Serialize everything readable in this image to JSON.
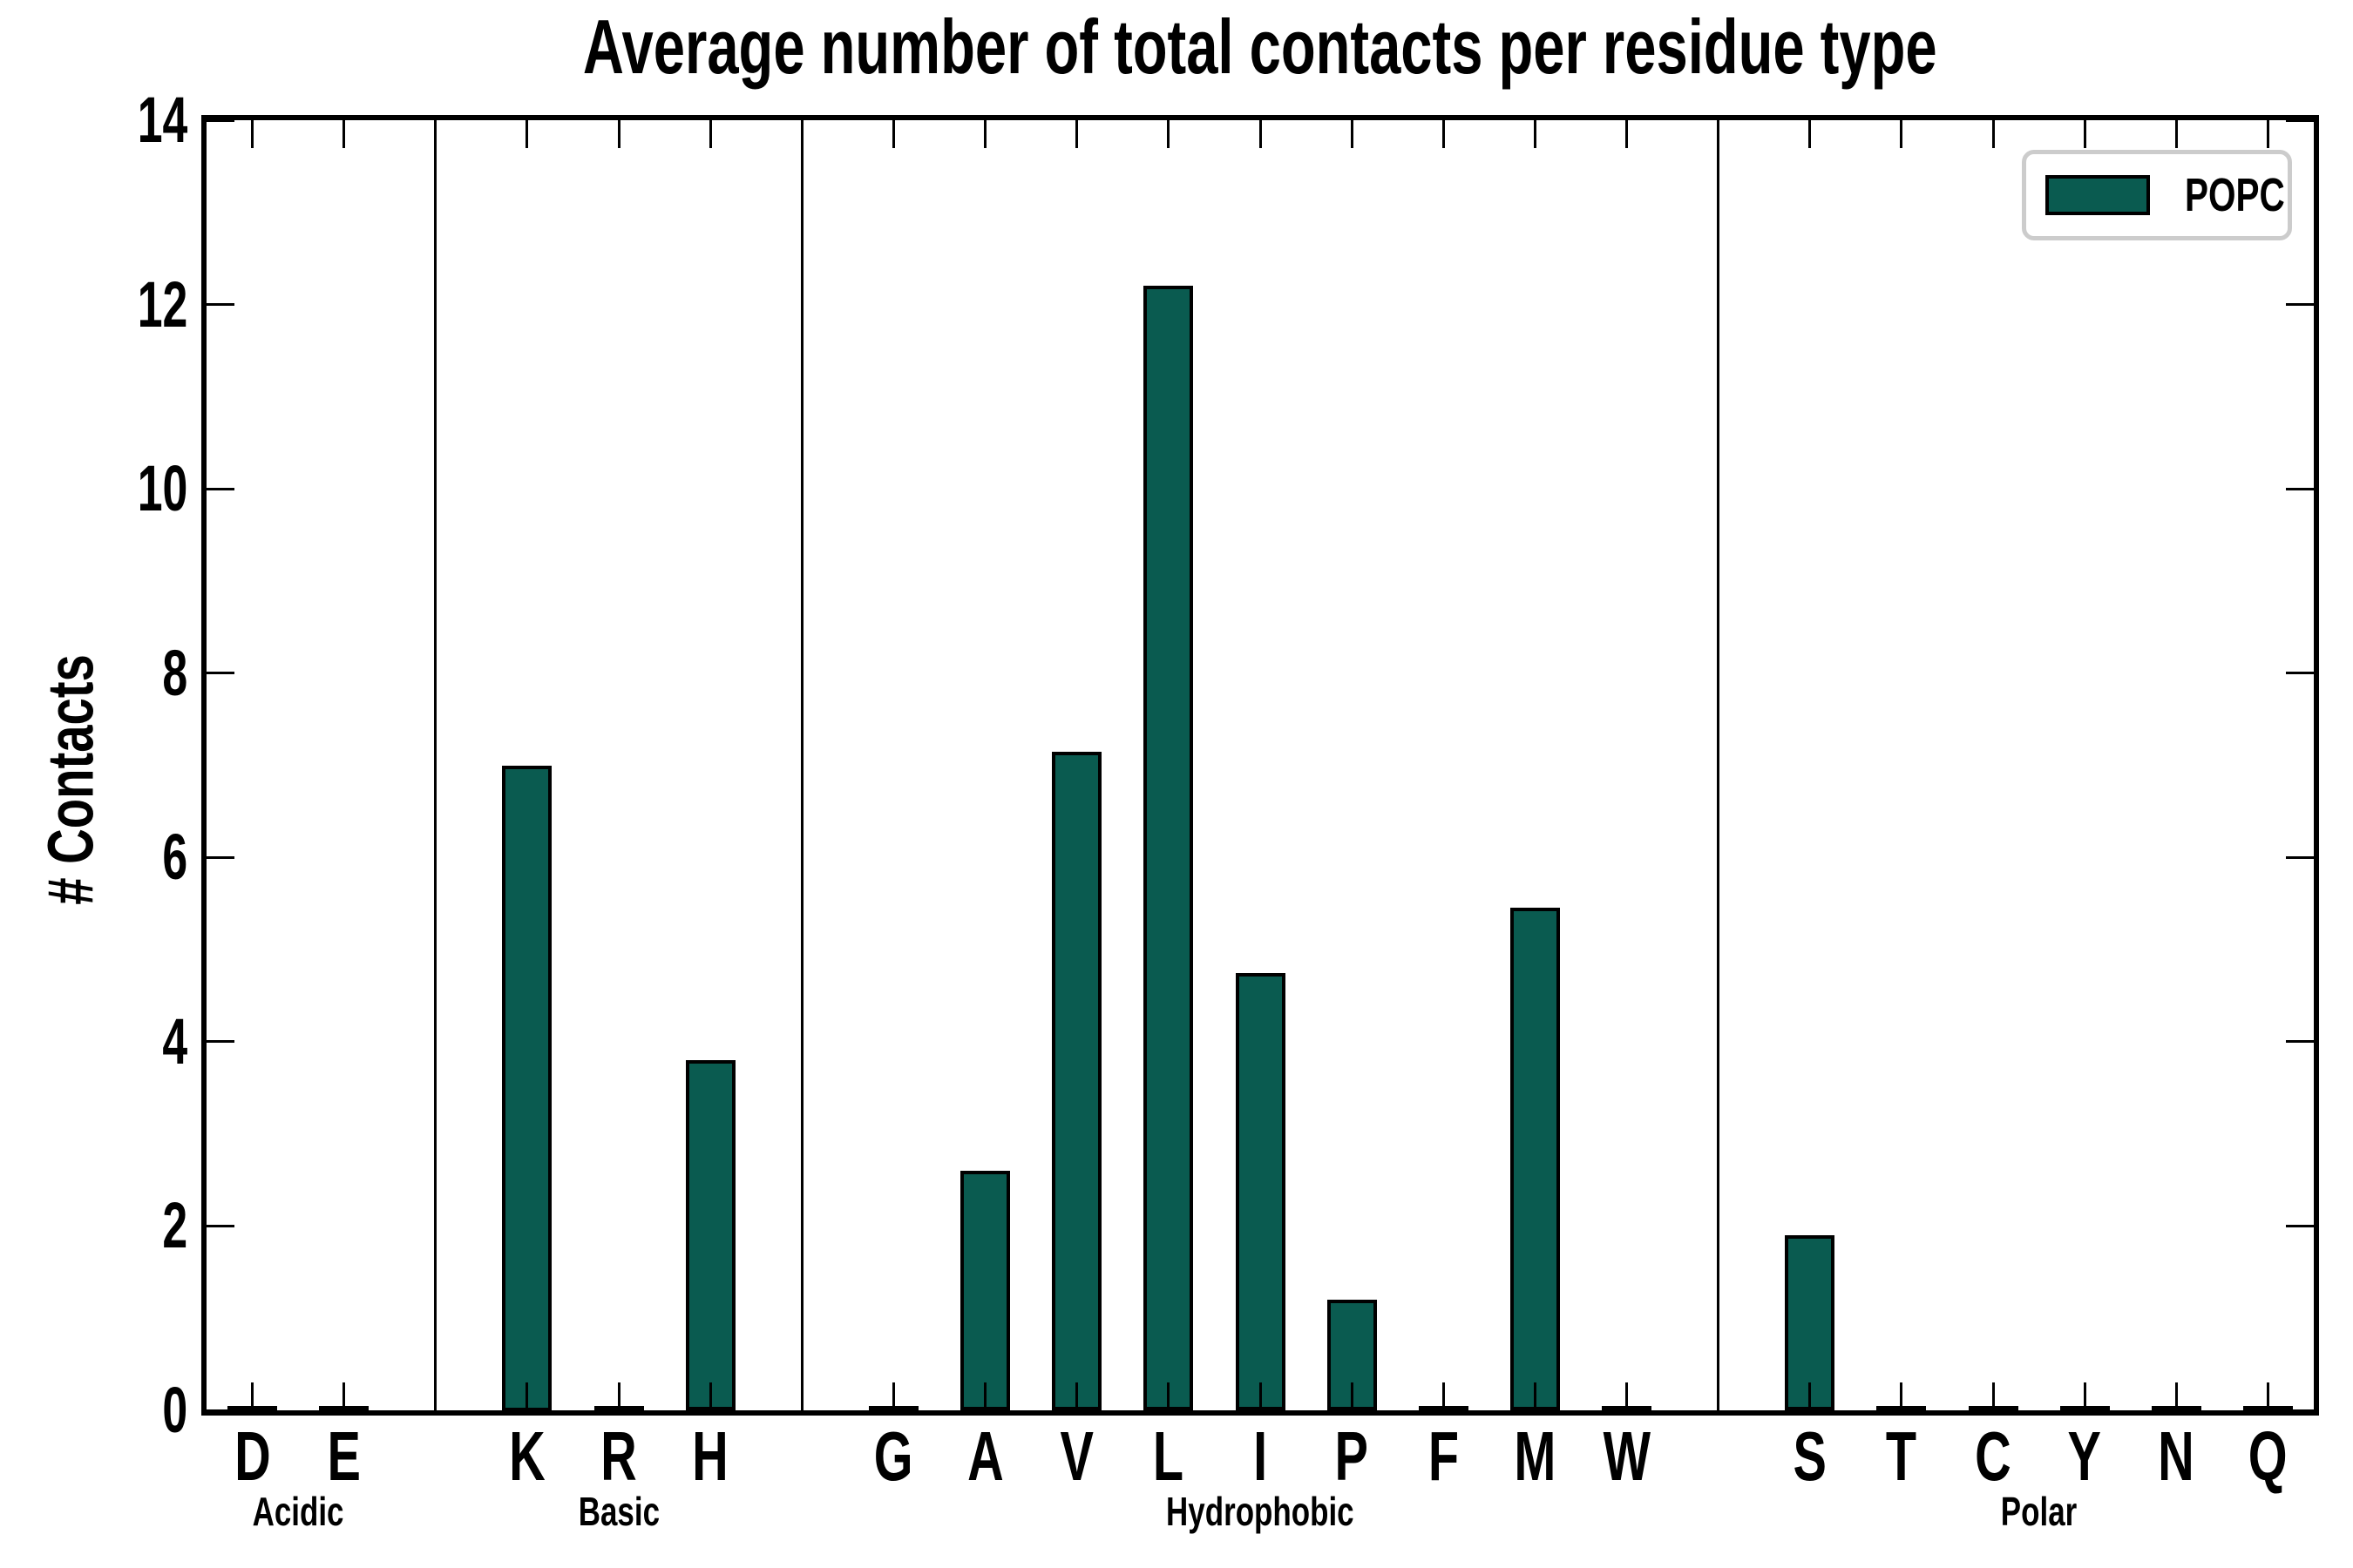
{
  "title": "Average number of total contacts per residue type",
  "y_axis_label": "# Contacts",
  "legend": {
    "label": "POPC"
  },
  "colors": {
    "bar_fill": "#0a5b50",
    "bar_edge": "#000000",
    "axis": "#000000",
    "legend_border": "#cccccc",
    "background": "#ffffff"
  },
  "chart_data": {
    "type": "bar",
    "title": "Average number of total contacts per residue type",
    "xlabel": "",
    "ylabel": "# Contacts",
    "ylim": [
      0,
      14
    ],
    "yticks": [
      0,
      2,
      4,
      6,
      8,
      10,
      12,
      14
    ],
    "grid": false,
    "legend_position": "upper right",
    "legend_entries": [
      "POPC"
    ],
    "groups": [
      {
        "label": "Acidic",
        "residues": [
          "D",
          "E"
        ],
        "values": [
          0.02,
          0.02
        ]
      },
      {
        "label": "Basic",
        "residues": [
          "K",
          "R",
          "H"
        ],
        "values": [
          7.0,
          0.02,
          3.8
        ]
      },
      {
        "label": "Hydrophobic",
        "residues": [
          "G",
          "A",
          "V",
          "L",
          "I",
          "P",
          "F",
          "M",
          "W"
        ],
        "values": [
          0.02,
          2.6,
          7.15,
          12.2,
          4.75,
          1.2,
          0.02,
          5.45,
          0.02
        ]
      },
      {
        "label": "Polar",
        "residues": [
          "S",
          "T",
          "C",
          "Y",
          "N",
          "Q"
        ],
        "values": [
          1.9,
          0.02,
          0.02,
          0.02,
          0.02,
          0.02
        ]
      }
    ],
    "categories": [
      "D",
      "E",
      "K",
      "R",
      "H",
      "G",
      "A",
      "V",
      "L",
      "I",
      "P",
      "F",
      "M",
      "W",
      "S",
      "T",
      "C",
      "Y",
      "N",
      "Q"
    ],
    "series": [
      {
        "name": "POPC",
        "values": [
          0.02,
          0.02,
          7.0,
          0.02,
          3.8,
          0.02,
          2.6,
          7.15,
          12.2,
          4.75,
          1.2,
          0.02,
          5.45,
          0.02,
          1.9,
          0.02,
          0.02,
          0.02,
          0.02,
          0.02
        ]
      }
    ]
  }
}
